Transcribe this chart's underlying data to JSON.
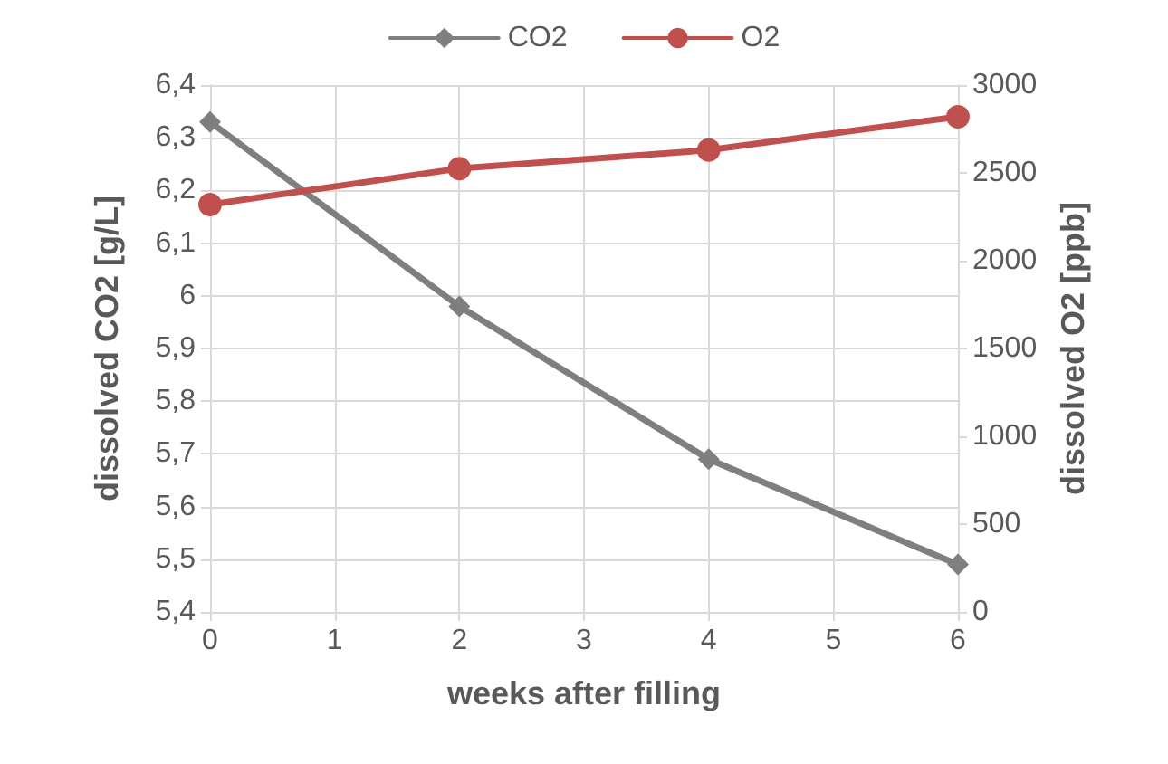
{
  "chart_data": {
    "type": "line",
    "xlabel": "weeks after filling",
    "ylabel": "dissolved CO2 [g/L]",
    "y2label": "dissolved O2 [ppb]",
    "x": [
      0,
      2,
      4,
      6
    ],
    "series": [
      {
        "name": "CO2",
        "color": "#7f7f7f",
        "marker": "diamond",
        "values": [
          6.33,
          5.98,
          5.69,
          5.49
        ]
      },
      {
        "name": "O2",
        "color": "#c0504d",
        "marker": "circle",
        "axis": "y2",
        "values": [
          2320,
          2525,
          2630,
          2820
        ]
      }
    ],
    "xlim": [
      0,
      6
    ],
    "xticks": [
      0,
      1,
      2,
      3,
      4,
      5,
      6
    ],
    "ylim": [
      5.4,
      6.4
    ],
    "yticks": [
      {
        "value": 5.4,
        "label": "5,4"
      },
      {
        "value": 5.5,
        "label": "5,5"
      },
      {
        "value": 5.6,
        "label": "5,6"
      },
      {
        "value": 5.7,
        "label": "5,7"
      },
      {
        "value": 5.8,
        "label": "5,8"
      },
      {
        "value": 5.9,
        "label": "5,9"
      },
      {
        "value": 6,
        "label": "6"
      },
      {
        "value": 6.1,
        "label": "6,1"
      },
      {
        "value": 6.2,
        "label": "6,2"
      },
      {
        "value": 6.3,
        "label": "6,3"
      },
      {
        "value": 6.4,
        "label": "6,4"
      }
    ],
    "y2lim": [
      0,
      3000
    ],
    "y2ticks": [
      0,
      500,
      1000,
      1500,
      2000,
      2500,
      3000
    ],
    "grid": true,
    "legend": "top"
  }
}
